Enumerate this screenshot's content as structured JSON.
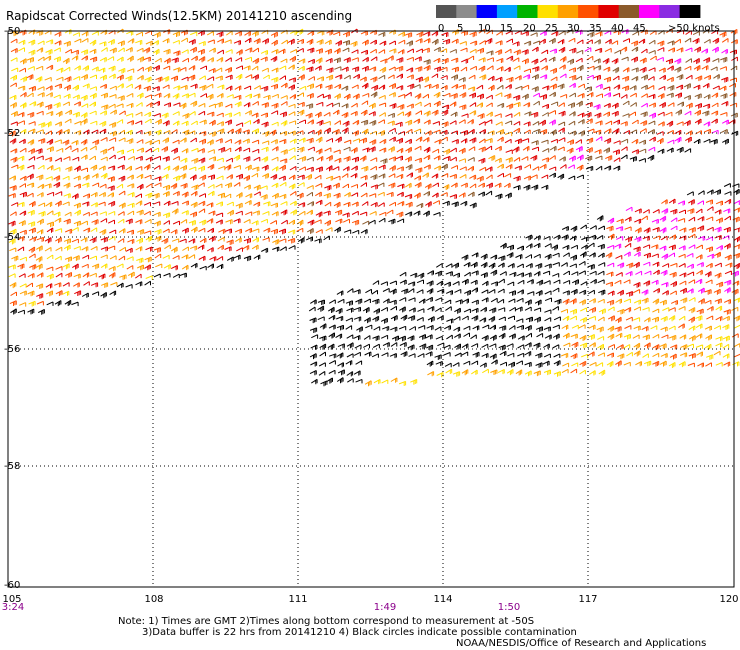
{
  "title": "Rapidscat Corrected Winds(12.5KM) 20141210 ascending",
  "legend": {
    "labels": [
      "0",
      "5",
      "10",
      "15",
      "20",
      "25",
      "30",
      "35",
      "40",
      "45",
      ">50 knots"
    ],
    "colors": [
      "#555555",
      "#8c8c8c",
      "#0000ff",
      "#00a0ff",
      "#00b400",
      "#ffe000",
      "#ffa000",
      "#ff5000",
      "#e00000",
      "#8b5a2b",
      "#ff00ff",
      "#8a2be2",
      "#000000"
    ]
  },
  "axes": {
    "lat_labels": [
      "-50",
      "-52",
      "-54",
      "-56",
      "-58",
      "-60"
    ],
    "lon_labels": [
      "105",
      "108",
      "111",
      "114",
      "117",
      "120"
    ],
    "time_labels": [
      "3:24",
      "1:49",
      "1:50"
    ]
  },
  "notes": {
    "line1": "Note: 1) Times are GMT 2)Times along bottom correspond to measurement at -50S",
    "line2": "3)Data buffer is 22 hrs from 20141210 4) Black circles indicate possible contamination"
  },
  "credit": "NOAA/NESDIS/Office of Research and Applications"
}
